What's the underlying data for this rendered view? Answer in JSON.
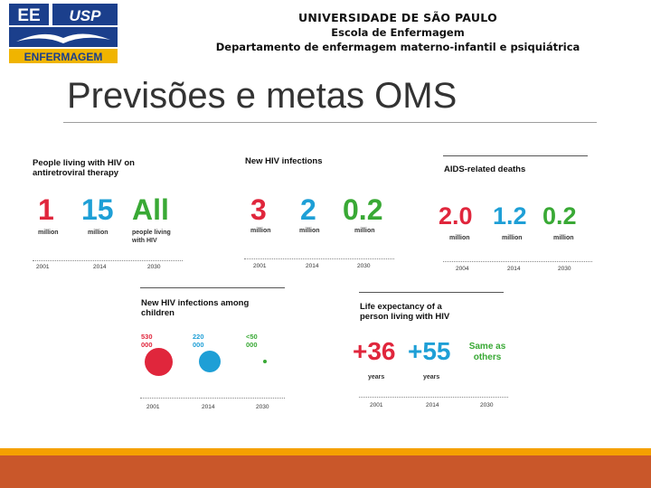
{
  "header": {
    "logo": {
      "top_left": "EE",
      "top_right": "USP",
      "bottom": "ENFERMAGEM"
    },
    "university": "UNIVERSIDADE DE SÃO PAULO",
    "school": "Escola de Enfermagem",
    "department": "Departamento de enfermagem materno-infantil e psiquiátrica"
  },
  "slide": {
    "title": "Previsões e metas OMS"
  },
  "colors": {
    "red": "#e0263c",
    "blue": "#1e9fd6",
    "green": "#39a935",
    "footer": "#c9572a",
    "footer_strip": "#f5a000"
  },
  "panels": {
    "art": {
      "title": "People living with HIV on antiretroviral therapy",
      "values": [
        "1",
        "15",
        "All"
      ],
      "units": [
        "million",
        "million",
        "people living with HIV"
      ],
      "years": [
        "2001",
        "2014",
        "2030"
      ]
    },
    "new_infections": {
      "title": "New HIV infections",
      "values": [
        "3",
        "2",
        "0.2"
      ],
      "units": [
        "million",
        "million",
        "million"
      ],
      "years": [
        "2001",
        "2014",
        "2030"
      ]
    },
    "deaths": {
      "title": "AIDS-related deaths",
      "values": [
        "2.0",
        "1.2",
        "0.2"
      ],
      "units": [
        "million",
        "million",
        "million"
      ],
      "years": [
        "2004",
        "2014",
        "2030"
      ]
    },
    "children": {
      "title": "New HIV infections among children",
      "values": [
        "530 000",
        "220 000",
        "<50 000"
      ],
      "years": [
        "2001",
        "2014",
        "2030"
      ]
    },
    "life": {
      "title": "Life expectancy of a person living with HIV",
      "values": [
        "+36",
        "+55",
        "Same as others"
      ],
      "units": [
        "years",
        "years"
      ],
      "years": [
        "2001",
        "2014",
        "2030"
      ]
    }
  }
}
